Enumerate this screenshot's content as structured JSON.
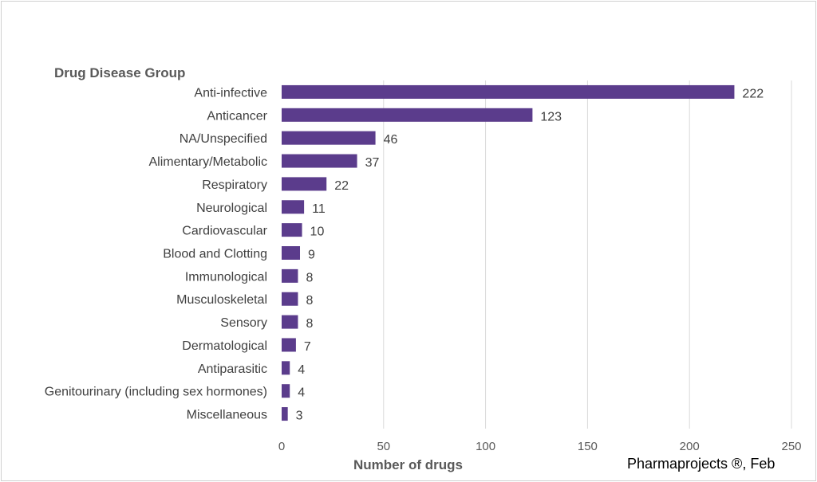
{
  "chart_data": {
    "type": "bar",
    "orientation": "horizontal",
    "category_axis_title": "Drug Disease Group",
    "xlabel": "Number of drugs",
    "source_note": "Pharmaprojects ®, Feb",
    "categories": [
      "Anti-infective",
      "Anticancer",
      "NA/Unspecified",
      "Alimentary/Metabolic",
      "Respiratory",
      "Neurological",
      "Cardiovascular",
      "Blood and Clotting",
      "Immunological",
      "Musculoskeletal",
      "Sensory",
      "Dermatological",
      "Antiparasitic",
      "Genitourinary (including sex hormones)",
      "Miscellaneous"
    ],
    "values": [
      222,
      123,
      46,
      37,
      22,
      11,
      10,
      9,
      8,
      8,
      8,
      7,
      4,
      4,
      3
    ],
    "xlim": [
      0,
      250
    ],
    "xticks": [
      0,
      50,
      100,
      150,
      200,
      250
    ],
    "grid": "vertical",
    "bar_color": "#5b3c8c",
    "data_labels": true
  }
}
